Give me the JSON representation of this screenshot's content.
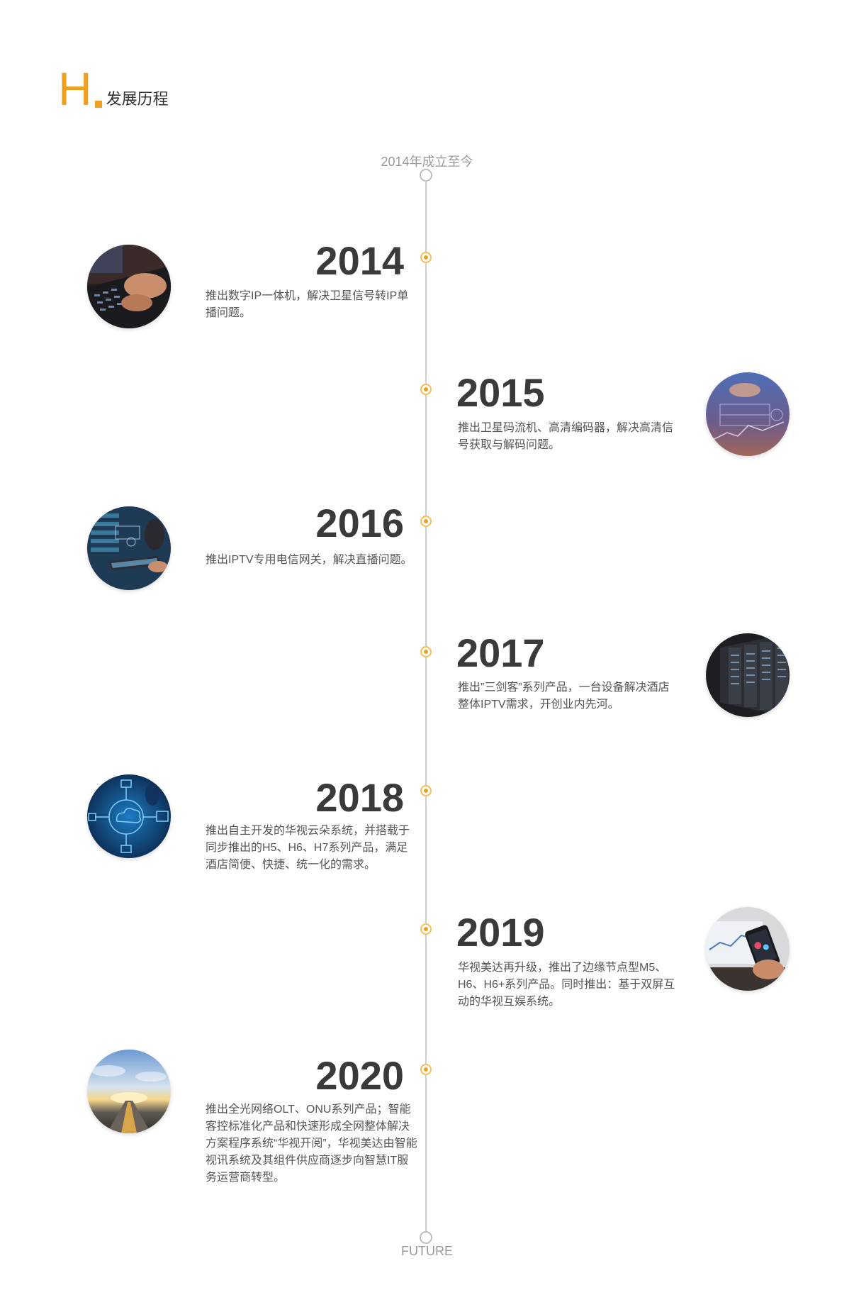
{
  "header": {
    "letter": "H",
    "title": "发展历程"
  },
  "timeline": {
    "start_label": "2014年成立至今",
    "end_label": "FUTURE",
    "accent_color": "#f0a020",
    "events": [
      {
        "year": "2014",
        "text": "推出数字IP一体机，解决卫星信号转IP单播问题。",
        "side": "left",
        "image": "laptop-typing-image"
      },
      {
        "year": "2015",
        "text": "推出卫星码流机、高清编码器，解决高清信号获取与解码问题。",
        "side": "right",
        "image": "data-dashboard-image"
      },
      {
        "year": "2016",
        "text": "推出IPTV专用电信网关，解决直播问题。",
        "side": "left",
        "image": "tablet-server-image"
      },
      {
        "year": "2017",
        "text": "推出”三剑客”系列产品，一台设备解决酒店整体IPTV需求，开创业内先河。",
        "side": "right",
        "image": "server-rack-image"
      },
      {
        "year": "2018",
        "text": "推出自主开发的华视云朵系统，并搭载于同步推出的H5、H6、H7系列产品，满足酒店简便、快捷、统一化的需求。",
        "side": "left",
        "image": "cloud-network-image"
      },
      {
        "year": "2019",
        "text": "华视美达再升级，推出了边缘节点型M5、H6、H6+系列产品。同时推出：基于双屏互动的华视互娱系统。",
        "side": "right",
        "image": "smartphone-hand-image"
      },
      {
        "year": "2020",
        "text": "推出全光网络OLT、ONU系列产品；智能客控标准化产品和快速形成全网整体解决方案程序系统“华视开阅”，华视美达由智能视讯系统及其组件供应商逐步向智慧IT服务运营商转型。",
        "side": "left",
        "image": "sunrise-road-image"
      }
    ]
  }
}
